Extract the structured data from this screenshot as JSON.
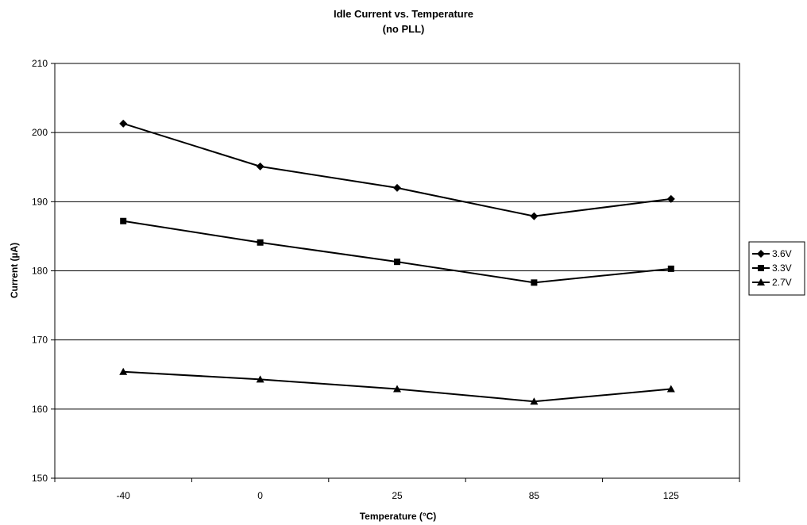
{
  "chart_data": {
    "type": "line",
    "title": "Idle Current vs. Temperature",
    "subtitle": "(no PLL)",
    "xlabel": "Temperature (°C)",
    "ylabel": "Current (µA)",
    "categories": [
      "-40",
      "0",
      "25",
      "85",
      "125"
    ],
    "ylim": [
      150,
      210
    ],
    "yticks": [
      150,
      160,
      170,
      180,
      190,
      200,
      210
    ],
    "grid": true,
    "legend_position": "right",
    "series": [
      {
        "name": "3.6V",
        "marker": "diamond",
        "values": [
          201.3,
          195.1,
          192.0,
          187.9,
          190.4
        ]
      },
      {
        "name": "3.3V",
        "marker": "square",
        "values": [
          187.2,
          184.1,
          181.3,
          178.3,
          180.3
        ]
      },
      {
        "name": "2.7V",
        "marker": "triangle",
        "values": [
          165.4,
          164.3,
          162.9,
          161.1,
          162.9
        ]
      }
    ],
    "colors": {
      "line": "#000000",
      "grid": "#000000"
    }
  }
}
